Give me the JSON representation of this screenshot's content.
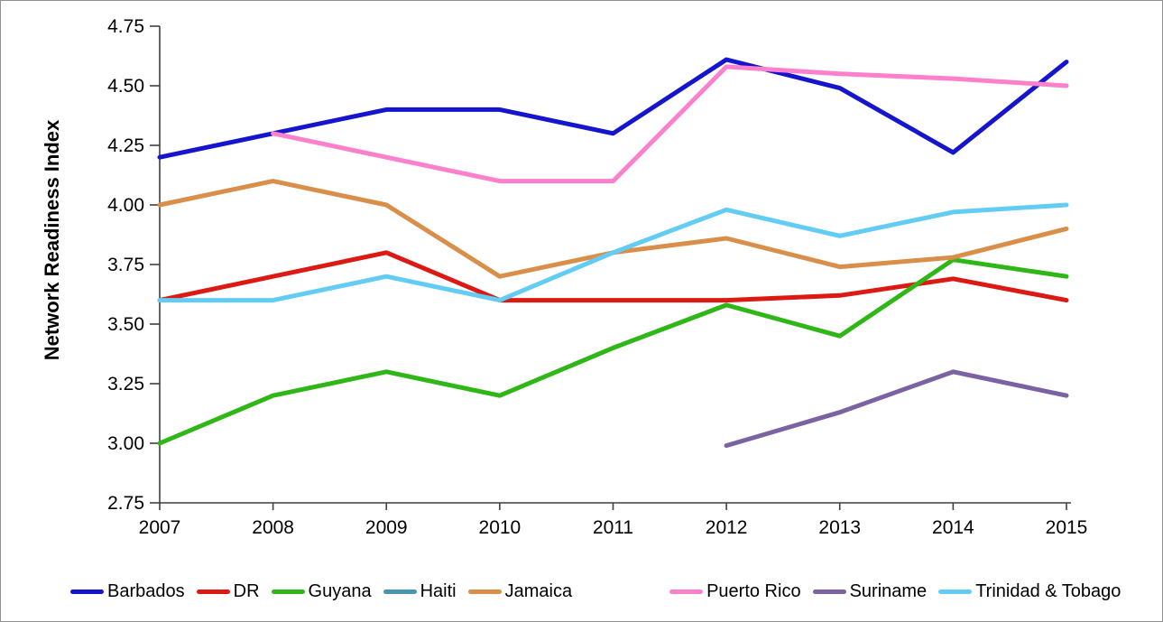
{
  "chart_data": {
    "type": "line",
    "title": "",
    "ylabel": "Network Readiness Index",
    "xlabel": "",
    "x": [
      "2007",
      "2008",
      "2009",
      "2010",
      "2011",
      "2012",
      "2013",
      "2014",
      "2015"
    ],
    "ylim": [
      2.75,
      4.75
    ],
    "ytick_step": 0.25,
    "ytick_labels": [
      "2.75",
      "3.00",
      "3.25",
      "3.50",
      "3.75",
      "4.00",
      "4.25",
      "4.50",
      "4.75"
    ],
    "grid": false,
    "legend_position": "bottom",
    "series": [
      {
        "name": "Barbados",
        "color": "#1515CD",
        "values": [
          4.2,
          4.3,
          4.4,
          4.4,
          4.3,
          4.61,
          4.49,
          4.22,
          4.6
        ]
      },
      {
        "name": "DR",
        "color": "#DC1912",
        "values": [
          3.6,
          3.7,
          3.8,
          3.6,
          3.6,
          3.6,
          3.62,
          3.69,
          3.6
        ]
      },
      {
        "name": "Guyana",
        "color": "#2FB617",
        "values": [
          3.0,
          3.2,
          3.3,
          3.2,
          3.4,
          3.58,
          3.45,
          3.77,
          3.7
        ]
      },
      {
        "name": "Haiti",
        "color": "#4895B2",
        "values": [
          null,
          null,
          null,
          null,
          null,
          null,
          null,
          null,
          null
        ]
      },
      {
        "name": "Jamaica",
        "color": "#D98F49",
        "values": [
          4.0,
          4.1,
          4.0,
          3.7,
          3.8,
          3.86,
          3.74,
          3.78,
          3.9
        ]
      },
      {
        "name": "Puerto Rico",
        "color": "#FC80CB",
        "values": [
          null,
          4.3,
          4.2,
          4.1,
          4.1,
          4.58,
          4.55,
          4.53,
          4.5
        ]
      },
      {
        "name": "Suriname",
        "color": "#7B62A2",
        "values": [
          null,
          null,
          null,
          null,
          null,
          2.99,
          3.13,
          3.3,
          3.2
        ]
      },
      {
        "name": "Trinidad & Tobago",
        "color": "#63CCF5",
        "values": [
          3.6,
          3.6,
          3.7,
          3.6,
          3.8,
          3.98,
          3.87,
          3.97,
          4.0
        ]
      }
    ]
  },
  "frame": {
    "background": "#ffffff",
    "border_color": "#909090",
    "axis_color": "#3f3f3f",
    "text_color": "#000000"
  }
}
